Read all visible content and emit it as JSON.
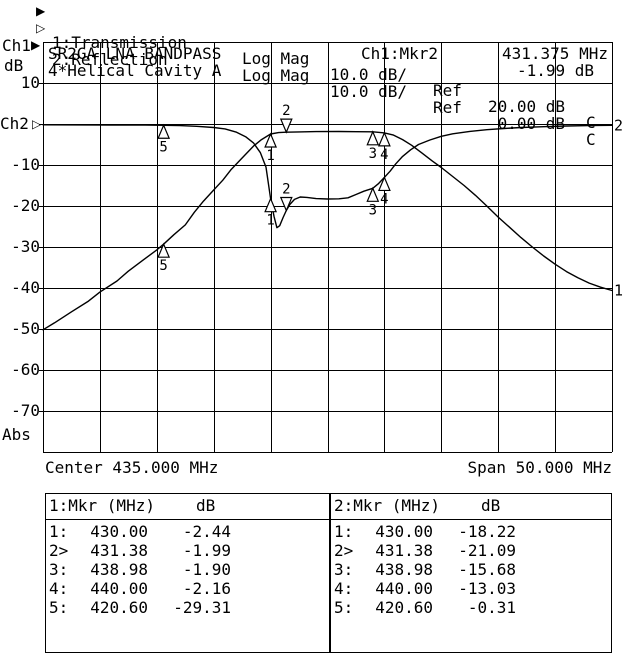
{
  "header": {
    "rows": [
      {
        "marker_glyph": "filled-right-triangle",
        "arrow": "▶",
        "trace": "1:Transmission",
        "format": "Log Mag",
        "scale": "10.0 dB/",
        "ref_label": "Ref",
        "ref_value": "20.00 dB",
        "cal": "C"
      },
      {
        "marker_glyph": "hollow-right-triangle",
        "arrow": "▷",
        "trace": "2:Reflection",
        "format": "Log Mag",
        "scale": "10.0 dB/",
        "ref_label": "Ref",
        "ref_value": "0.00 dB",
        "cal": "C"
      }
    ]
  },
  "y_axis": {
    "ch1_label": "Ch1",
    "ch1_pointer": "▶",
    "unit": "dB",
    "labels": [
      {
        "text": "10",
        "db": 10
      },
      {
        "text": "-10",
        "db": -10
      },
      {
        "text": "-20",
        "db": -20
      },
      {
        "text": "-30",
        "db": -30
      },
      {
        "text": "-40",
        "db": -40
      },
      {
        "text": "-50",
        "db": -50
      },
      {
        "text": "-60",
        "db": -60
      },
      {
        "text": "-70",
        "db": -70
      }
    ],
    "ch2_label": "Ch2",
    "ch2_pointer": "▷",
    "abs_label": "Abs"
  },
  "title": {
    "line1": "SR2GA LNA BANDPASS",
    "line2": "4*Helical Cavity A"
  },
  "active_marker_readout": {
    "channel": "Ch1:Mkr2",
    "frequency": "431.375 MHz",
    "value": "-1.99 dB"
  },
  "x_axis": {
    "center": "Center 435.000 MHz",
    "span": "Span 50.000 MHz"
  },
  "marker_tables": [
    {
      "title": "1:Mkr (MHz)",
      "unit": "dB",
      "rows": [
        {
          "n": "1:",
          "freq": "430.00",
          "db": "-2.44"
        },
        {
          "n": "2>",
          "freq": "431.38",
          "db": "-1.99"
        },
        {
          "n": "3:",
          "freq": "438.98",
          "db": "-1.90"
        },
        {
          "n": "4:",
          "freq": "440.00",
          "db": "-2.16"
        },
        {
          "n": "5:",
          "freq": "420.60",
          "db": "-29.31"
        }
      ]
    },
    {
      "title": "2:Mkr (MHz)",
      "unit": "dB",
      "rows": [
        {
          "n": "1:",
          "freq": "430.00",
          "db": "-18.22"
        },
        {
          "n": "2>",
          "freq": "431.38",
          "db": "-21.09"
        },
        {
          "n": "3:",
          "freq": "438.98",
          "db": "-15.68"
        },
        {
          "n": "4:",
          "freq": "440.00",
          "db": "-13.03"
        },
        {
          "n": "5:",
          "freq": "420.60",
          "db": "-0.31"
        }
      ]
    }
  ],
  "chart_data": {
    "type": "line",
    "title": "SR2GA LNA BANDPASS 4*Helical Cavity A",
    "x_axis": {
      "min_mhz": 410,
      "max_mhz": 460,
      "center_mhz": 435.0,
      "span_mhz": 50.0,
      "unit": "MHz"
    },
    "y_axis": {
      "unit": "dB",
      "db_per_div": 10,
      "divisions": 10,
      "top_db": 20,
      "bottom_db": -80,
      "ch1_ref_db": 20.0,
      "ch2_ref_db": 0.0
    },
    "grid": {
      "columns": 10,
      "rows": 10,
      "on": true
    },
    "series": [
      {
        "name": "1:Transmission",
        "end_label": "1",
        "marker_key": "ch1_db",
        "points": [
          [
            410,
            -50.2
          ],
          [
            411,
            -48.5
          ],
          [
            412.5,
            -45.8
          ],
          [
            414,
            -43.2
          ],
          [
            415,
            -41
          ],
          [
            416.5,
            -38.3
          ],
          [
            417.5,
            -35.9
          ],
          [
            418.8,
            -33.2
          ],
          [
            420,
            -30.7
          ],
          [
            420.6,
            -29.31
          ],
          [
            421.5,
            -27
          ],
          [
            422.5,
            -24.6
          ],
          [
            423.3,
            -21.5
          ],
          [
            424.1,
            -18.8
          ],
          [
            425,
            -16.1
          ],
          [
            425.8,
            -13.7
          ],
          [
            426.5,
            -11.2
          ],
          [
            427.5,
            -8.3
          ],
          [
            428.5,
            -5.4
          ],
          [
            429.2,
            -3.8
          ],
          [
            430,
            -2.44
          ],
          [
            430.7,
            -2.1
          ],
          [
            431.38,
            -1.99
          ],
          [
            432.5,
            -1.92
          ],
          [
            434,
            -1.86
          ],
          [
            436,
            -1.84
          ],
          [
            437.5,
            -1.87
          ],
          [
            438.98,
            -1.9
          ],
          [
            440,
            -2.16
          ],
          [
            440.8,
            -2.7
          ],
          [
            441.6,
            -3.8
          ],
          [
            442.4,
            -5.2
          ],
          [
            443.3,
            -7.1
          ],
          [
            444.2,
            -9
          ],
          [
            445,
            -10.6
          ],
          [
            446,
            -12.8
          ],
          [
            447,
            -15
          ],
          [
            448,
            -17.4
          ],
          [
            449,
            -20
          ],
          [
            450,
            -22.7
          ],
          [
            451,
            -25.2
          ],
          [
            452,
            -27.7
          ],
          [
            453,
            -30
          ],
          [
            454,
            -32.2
          ],
          [
            455,
            -34.2
          ],
          [
            456,
            -36
          ],
          [
            457,
            -37.5
          ],
          [
            458,
            -38.8
          ],
          [
            459,
            -39.8
          ],
          [
            460,
            -40.6
          ]
        ]
      },
      {
        "name": "2:Reflection",
        "end_label": "2",
        "marker_key": "ch2_db",
        "points": [
          [
            410,
            -0.2
          ],
          [
            413,
            -0.22
          ],
          [
            416,
            -0.25
          ],
          [
            419,
            -0.28
          ],
          [
            420.6,
            -0.31
          ],
          [
            422,
            -0.4
          ],
          [
            423.5,
            -0.55
          ],
          [
            425,
            -0.85
          ],
          [
            426,
            -1.2
          ],
          [
            427,
            -2
          ],
          [
            427.8,
            -3.1
          ],
          [
            428.5,
            -4.6
          ],
          [
            429.1,
            -7
          ],
          [
            429.6,
            -10.5
          ],
          [
            430,
            -18.22
          ],
          [
            430.3,
            -22.5
          ],
          [
            430.55,
            -25.3
          ],
          [
            430.8,
            -24.8
          ],
          [
            431.1,
            -22.8
          ],
          [
            431.38,
            -21.09
          ],
          [
            431.7,
            -19.6
          ],
          [
            432.1,
            -18.4
          ],
          [
            432.6,
            -17.8
          ],
          [
            433.2,
            -17.9
          ],
          [
            434,
            -18.2
          ],
          [
            435,
            -18.3
          ],
          [
            436,
            -18.25
          ],
          [
            436.8,
            -18
          ],
          [
            437.5,
            -17.2
          ],
          [
            438.2,
            -16.4
          ],
          [
            438.98,
            -15.68
          ],
          [
            439.5,
            -14.5
          ],
          [
            440,
            -13.03
          ],
          [
            440.5,
            -11.5
          ],
          [
            441,
            -9.7
          ],
          [
            441.6,
            -7.9
          ],
          [
            442.3,
            -6.3
          ],
          [
            443,
            -5
          ],
          [
            444,
            -3.9
          ],
          [
            445,
            -3
          ],
          [
            446,
            -2.4
          ],
          [
            447.5,
            -1.8
          ],
          [
            449,
            -1.4
          ],
          [
            450.5,
            -1.1
          ],
          [
            452,
            -0.85
          ],
          [
            454,
            -0.65
          ],
          [
            456,
            -0.5
          ],
          [
            458,
            -0.4
          ],
          [
            460,
            -0.32
          ]
        ]
      }
    ],
    "markers": [
      {
        "n": "1",
        "freq": 430.0,
        "ch1_db": -2.44,
        "ch2_db": -18.22,
        "active": false
      },
      {
        "n": "2",
        "freq": 431.38,
        "ch1_db": -1.99,
        "ch2_db": -21.09,
        "active": true
      },
      {
        "n": "3",
        "freq": 438.98,
        "ch1_db": -1.9,
        "ch2_db": -15.68,
        "active": false
      },
      {
        "n": "4",
        "freq": 440.0,
        "ch1_db": -2.16,
        "ch2_db": -13.03,
        "active": false
      },
      {
        "n": "5",
        "freq": 420.6,
        "ch1_db": -29.31,
        "ch2_db": -0.31,
        "active": false
      }
    ],
    "legend_position": "top-left-annotation"
  }
}
